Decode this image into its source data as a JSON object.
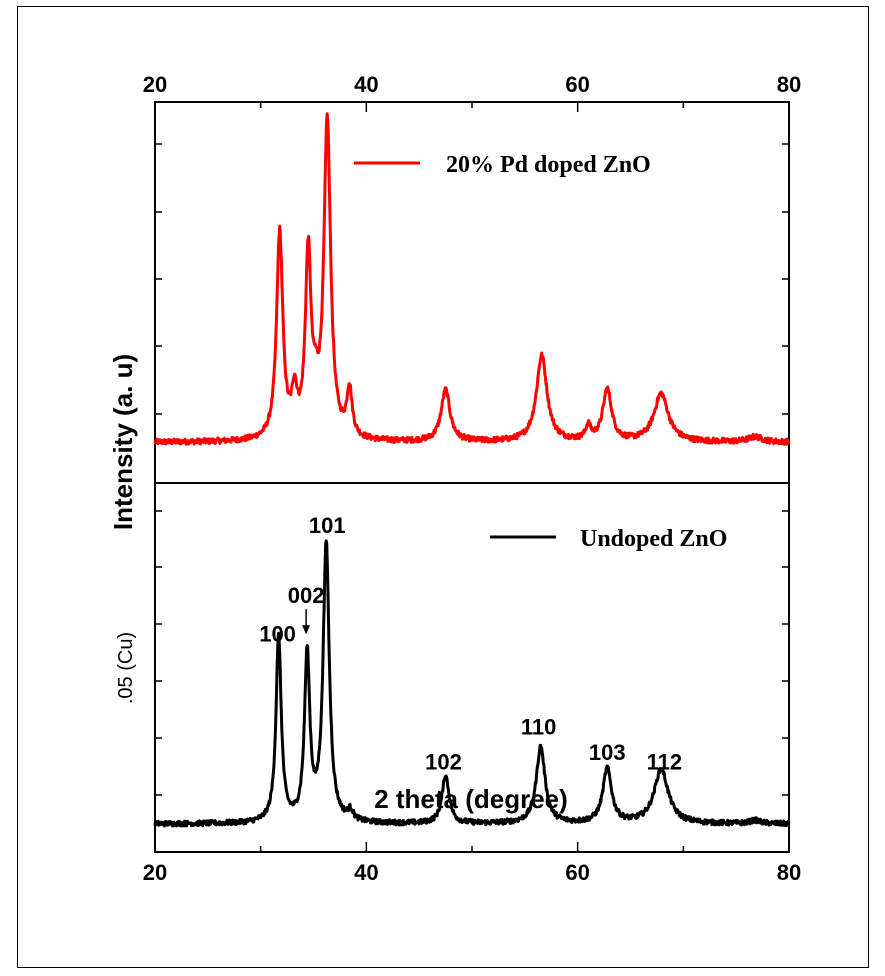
{
  "chart_data": {
    "type": "line",
    "xlabel": "2 theta (degree)",
    "ylabel": "Intensity (a. u)",
    "stray_label": ".05 (Cu)",
    "xlim": [
      20,
      80
    ],
    "xticks": [
      20,
      40,
      60,
      80
    ],
    "panels": [
      {
        "id": "top",
        "ylim": [
          0,
          100
        ],
        "legend": {
          "name": "20% Pd doped ZnO",
          "color": "#ff0000",
          "position": "top-right"
        },
        "series": {
          "name": "20% Pd doped ZnO",
          "color": "#ff0000",
          "baseline": 8,
          "peaks": [
            {
              "x": 31.8,
              "y": 60,
              "w": 0.35
            },
            {
              "x": 33.2,
              "y": 12,
              "w": 0.3
            },
            {
              "x": 34.5,
              "y": 53,
              "w": 0.32
            },
            {
              "x": 35.2,
              "y": 8,
              "w": 0.3
            },
            {
              "x": 36.3,
              "y": 92,
              "w": 0.38
            },
            {
              "x": 38.4,
              "y": 14,
              "w": 0.3
            },
            {
              "x": 47.5,
              "y": 15,
              "w": 0.5
            },
            {
              "x": 56.6,
              "y": 25,
              "w": 0.6
            },
            {
              "x": 61.0,
              "y": 4,
              "w": 0.3
            },
            {
              "x": 62.8,
              "y": 15,
              "w": 0.5
            },
            {
              "x": 67.9,
              "y": 14,
              "w": 0.8
            },
            {
              "x": 76.8,
              "y": 1.5,
              "w": 0.8
            }
          ]
        }
      },
      {
        "id": "bottom",
        "ylim": [
          0,
          100
        ],
        "legend": {
          "name": "Undoped ZnO",
          "color": "#000000",
          "position": "top-right"
        },
        "series": {
          "name": "Undoped ZnO",
          "color": "#000000",
          "baseline": 5,
          "peaks": [
            {
              "x": 31.7,
              "y": 58,
              "w": 0.3
            },
            {
              "x": 34.4,
              "y": 52,
              "w": 0.3
            },
            {
              "x": 36.2,
              "y": 87,
              "w": 0.35
            },
            {
              "x": 38.5,
              "y": 3,
              "w": 0.3
            },
            {
              "x": 47.5,
              "y": 15,
              "w": 0.4
            },
            {
              "x": 56.5,
              "y": 24,
              "w": 0.5
            },
            {
              "x": 62.8,
              "y": 17,
              "w": 0.5
            },
            {
              "x": 67.9,
              "y": 17,
              "w": 0.8
            },
            {
              "x": 76.8,
              "y": 1,
              "w": 0.6
            }
          ]
        },
        "annotations": [
          {
            "text": "100",
            "x": 31.6,
            "y": 62
          },
          {
            "text": "002",
            "x": 34.3,
            "y": 74,
            "arrow": true
          },
          {
            "text": "101",
            "x": 36.3,
            "y": 96
          },
          {
            "text": "102",
            "x": 47.3,
            "y": 22
          },
          {
            "text": "110",
            "x": 56.3,
            "y": 33
          },
          {
            "text": "103",
            "x": 62.8,
            "y": 25
          },
          {
            "text": "112",
            "x": 68.2,
            "y": 22
          }
        ]
      }
    ]
  }
}
